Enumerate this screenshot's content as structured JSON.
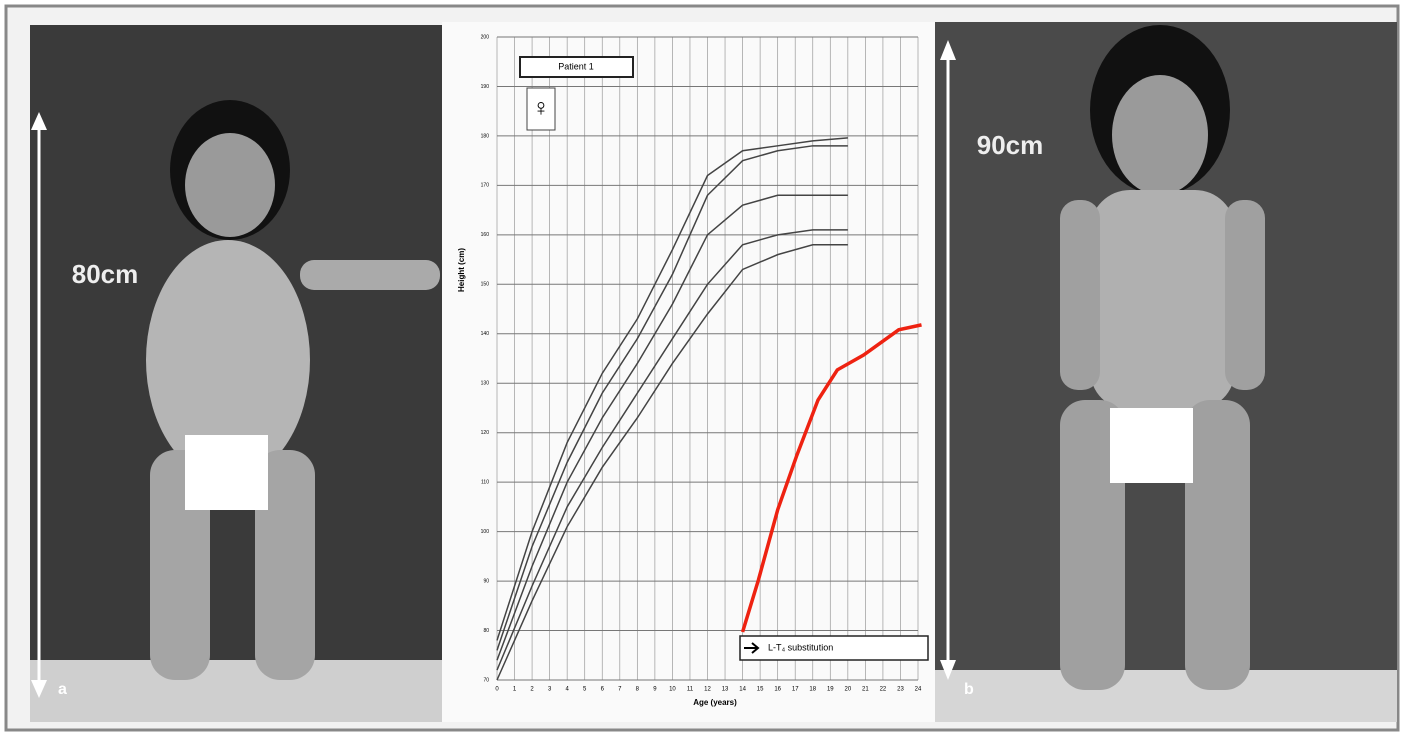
{
  "panels": {
    "left": {
      "letter": "a",
      "height_label": "80cm"
    },
    "right": {
      "letter": "b",
      "height_label": "90cm"
    }
  },
  "chart_data": {
    "type": "line",
    "y_label": "Height (cm)",
    "x_label": "Age (years)",
    "box_label": "Patient 1",
    "sex_symbol": "♀",
    "annotation": "L-T₄ substitution",
    "xlim": [
      0,
      24
    ],
    "ylim": [
      70,
      200
    ],
    "xticks": [
      0,
      1,
      2,
      3,
      4,
      5,
      6,
      7,
      8,
      9,
      10,
      11,
      12,
      13,
      14,
      15,
      16,
      17,
      18,
      19,
      20,
      21,
      22,
      23,
      24
    ],
    "yticks": [
      70,
      80,
      90,
      100,
      110,
      120,
      130,
      140,
      150,
      160,
      170,
      180,
      190,
      200
    ],
    "grid": true,
    "series": [
      {
        "color": "#444444",
        "x": [
          0,
          2,
          4,
          6,
          8,
          10,
          12,
          14,
          16,
          18,
          20
        ],
        "values": [
          78,
          100,
          118,
          132,
          143,
          157,
          172,
          177,
          178,
          179,
          179.6
        ]
      },
      {
        "color": "#444444",
        "x": [
          0,
          2,
          4,
          6,
          8,
          10,
          12,
          14,
          16,
          18,
          20
        ],
        "values": [
          76,
          97,
          114,
          128,
          139,
          152,
          168,
          175,
          177,
          178,
          178
        ]
      },
      {
        "color": "#444444",
        "x": [
          0,
          2,
          4,
          6,
          8,
          10,
          12,
          14,
          16,
          18,
          20
        ],
        "values": [
          74,
          93,
          110,
          123,
          134,
          146,
          160,
          166,
          168,
          168,
          168
        ]
      },
      {
        "color": "#444444",
        "x": [
          0,
          2,
          4,
          6,
          8,
          10,
          12,
          14,
          16,
          18,
          20
        ],
        "values": [
          72,
          89,
          105,
          117,
          128,
          139,
          150,
          158,
          160,
          161,
          161
        ]
      },
      {
        "color": "#444444",
        "x": [
          0,
          2,
          4,
          6,
          8,
          10,
          12,
          14,
          16,
          18,
          20
        ],
        "values": [
          70,
          86,
          101,
          113,
          123,
          134,
          144,
          153,
          156,
          158,
          158
        ]
      },
      {
        "color": "#ee2211",
        "x": [
          14,
          14.9,
          16,
          17.1,
          18.3,
          19.4,
          20.9,
          22.9,
          24.2
        ],
        "values": [
          79.7,
          90.2,
          104.4,
          115.5,
          126.6,
          132.7,
          135.7,
          140.8,
          141.8
        ]
      }
    ]
  }
}
